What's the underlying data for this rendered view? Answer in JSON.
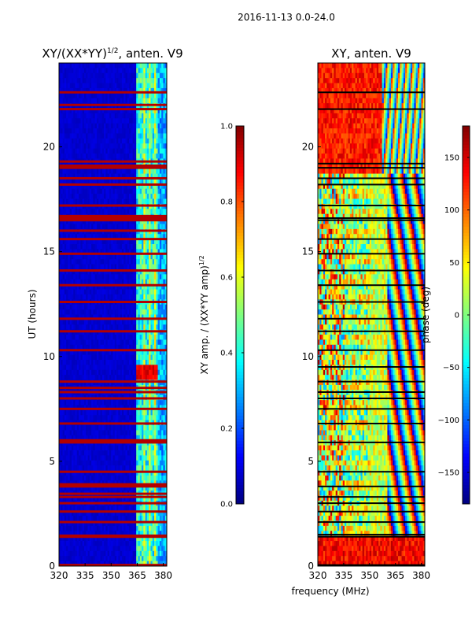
{
  "suptitle": "2016-11-13 0.0-24.0",
  "chart_data": [
    {
      "type": "heatmap",
      "title": "XY/(XX*YY)",
      "title_exponent": "1/2",
      "title_suffix": ", anten. V9",
      "ylabel": "UT (hours)",
      "xlabel": "",
      "xlim": [
        320,
        382
      ],
      "ylim": [
        0,
        24
      ],
      "xticks": [
        "320",
        "335",
        "350",
        "365",
        "380"
      ],
      "xtick_values": [
        320,
        335,
        350,
        365,
        380
      ],
      "yticks": [
        "0",
        "5",
        "10",
        "15",
        "20"
      ],
      "ytick_values": [
        0,
        5,
        10,
        15,
        20
      ],
      "colorbar": {
        "label": "XY amp. / (XX*YY amp)",
        "label_exponent": "1/2",
        "range": [
          0.0,
          1.0
        ],
        "ticks": [
          "0.0",
          "0.2",
          "0.4",
          "0.6",
          "0.8",
          "1.0"
        ],
        "tick_values": [
          0.0,
          0.2,
          0.4,
          0.6,
          0.8,
          1.0
        ]
      },
      "saturated_rows_hours": [
        0.05,
        1.4,
        1.45,
        2.1,
        2.6,
        3.0,
        3.3,
        3.45,
        3.8,
        3.9,
        4.5,
        5.9,
        6.0,
        6.8,
        7.5,
        8.0,
        8.3,
        8.5,
        8.8,
        10.3,
        11.2,
        11.8,
        12.6,
        13.4,
        14.1,
        14.9,
        15.6,
        16.0,
        16.5,
        16.6,
        16.7,
        17.2,
        18.2,
        18.5,
        19.0,
        19.1,
        19.3,
        21.8,
        22.0,
        22.6
      ],
      "hot_band": {
        "x_range": [
          364,
          376
        ],
        "hours": [
          8.9,
          9.6
        ],
        "value": 0.85
      }
    },
    {
      "type": "heatmap",
      "title": "XY, anten. V9",
      "ylabel": "",
      "xlabel": "frequency (MHz)",
      "xlim": [
        320,
        382
      ],
      "ylim": [
        0,
        24
      ],
      "xticks": [
        "320",
        "335",
        "350",
        "365",
        "380"
      ],
      "xtick_values": [
        320,
        335,
        350,
        365,
        380
      ],
      "yticks": [
        "0",
        "5",
        "10",
        "15",
        "20"
      ],
      "ytick_values": [
        0,
        5,
        10,
        15,
        20
      ],
      "colorbar": {
        "label": "phase (deg)",
        "range": [
          -180,
          180
        ],
        "ticks": [
          "-150",
          "-100",
          "-50",
          "0",
          "50",
          "100",
          "150"
        ],
        "tick_values": [
          -150,
          -100,
          -50,
          0,
          50,
          100,
          150
        ]
      },
      "blank_rows_hours": [
        0.05,
        1.4,
        1.5,
        2.1,
        2.6,
        3.0,
        3.3,
        3.8,
        4.5,
        5.9,
        6.8,
        7.5,
        8.0,
        8.3,
        8.8,
        9.5,
        10.3,
        11.2,
        11.8,
        12.6,
        13.4,
        14.1,
        14.9,
        15.6,
        16.5,
        16.6,
        17.2,
        18.2,
        18.5,
        19.0,
        19.2,
        21.8,
        22.6
      ]
    }
  ]
}
